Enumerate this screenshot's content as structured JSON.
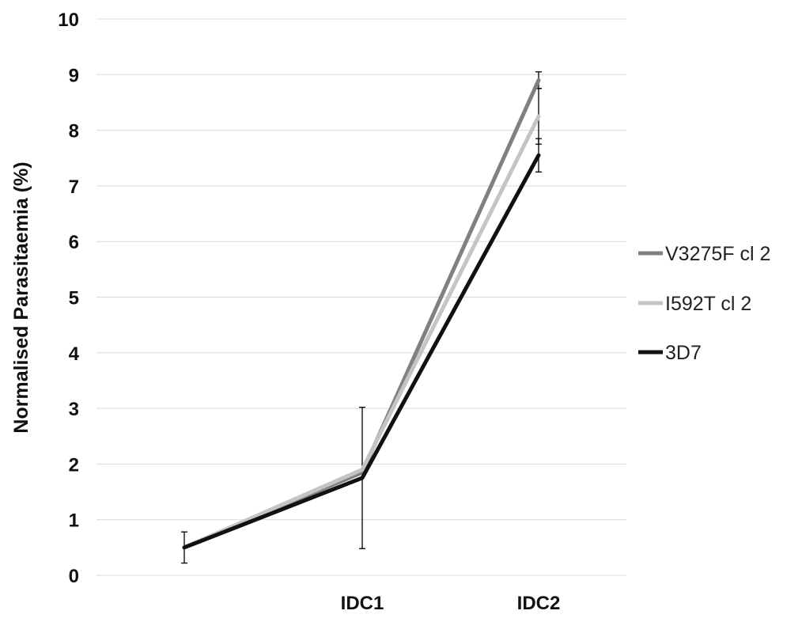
{
  "chart_data": {
    "type": "line",
    "title": "",
    "xlabel": "",
    "ylabel": "Normalised Parasitaemia (%)",
    "categories": [
      "",
      "IDC1",
      "IDC2"
    ],
    "ylim": [
      0,
      10
    ],
    "yticks": [
      0,
      1,
      2,
      3,
      4,
      5,
      6,
      7,
      8,
      9,
      10
    ],
    "grid": true,
    "legend_position": "right",
    "series": [
      {
        "name": "V3275F cl 2",
        "color": "#808080",
        "values": [
          0.5,
          1.85,
          8.9
        ],
        "error": [
          0.0,
          0.0,
          0.15
        ]
      },
      {
        "name": "I592T cl 2",
        "color": "#c4c4c4",
        "values": [
          0.5,
          1.9,
          8.25
        ],
        "error": [
          0.0,
          0.0,
          0.5
        ]
      },
      {
        "name": "3D7",
        "color": "#111111",
        "values": [
          0.5,
          1.75,
          7.55
        ],
        "error": [
          0.28,
          1.27,
          0.3
        ]
      }
    ]
  }
}
